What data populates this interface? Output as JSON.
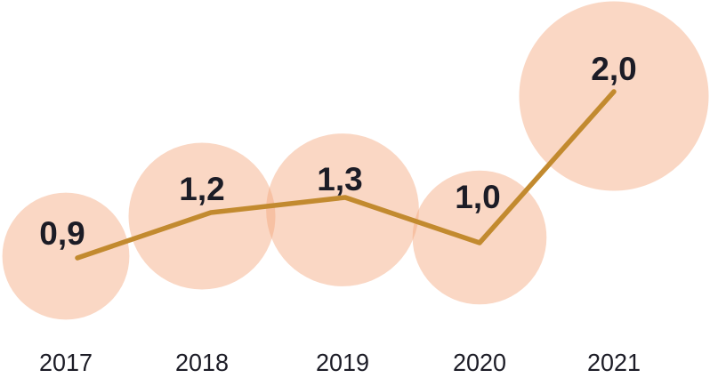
{
  "chart_data": {
    "type": "line",
    "variant": "bubble-line",
    "title": "",
    "xlabel": "",
    "ylabel": "",
    "categories": [
      "2017",
      "2018",
      "2019",
      "2020",
      "2021"
    ],
    "values": [
      0.9,
      1.2,
      1.3,
      1.0,
      2.0
    ],
    "labels": [
      "0,9",
      "1,2",
      "1,3",
      "1,0",
      "2,0"
    ],
    "decimal_separator": ",",
    "series": [
      {
        "name": "value",
        "values": [
          0.9,
          1.2,
          1.3,
          1.0,
          2.0
        ]
      }
    ],
    "ylim": [
      0,
      2.2
    ],
    "grid": false,
    "legend": false,
    "y_axis_visible": false,
    "x_axis_visible": true,
    "bubble_area_proportional_to_value": true,
    "colors": {
      "background": "#FFFFFF",
      "bubble_fill": "#F4A67C",
      "bubble_opacity": 0.45,
      "line": "#C28A2F",
      "value_text": "#1C1C26",
      "axis_text": "#1C1C26"
    }
  }
}
